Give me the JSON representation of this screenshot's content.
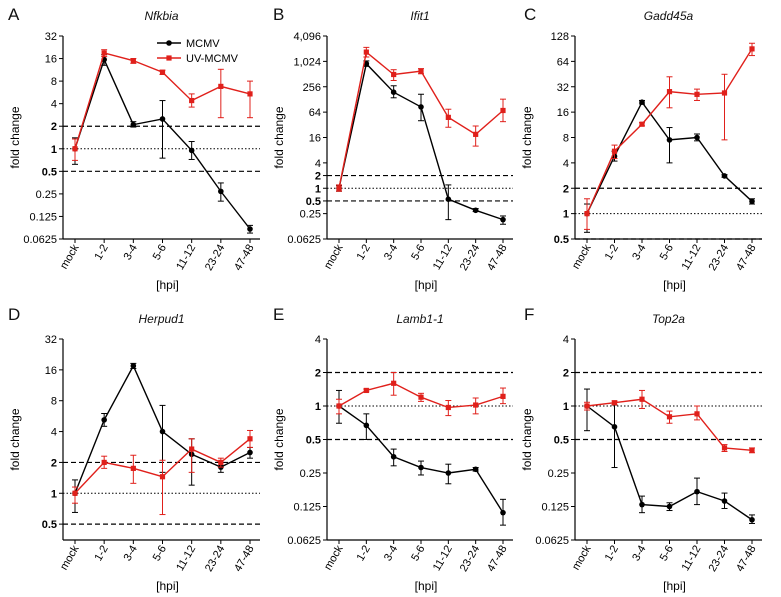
{
  "figure": {
    "x_unit_label": "[hpi]",
    "y_axis_label": "fold change"
  },
  "legend": {
    "mcmv": "MCMV",
    "uv_mcmv": "UV-MCMV"
  },
  "colors": {
    "mcmv": "#000000",
    "uv_mcmv": "#e0201b"
  },
  "chart_data": [
    {
      "panel": "A",
      "gene": "Nfkbia",
      "type": "line",
      "log_base": 2,
      "categories": [
        "mock",
        "1-2",
        "3-4",
        "5-6",
        "11-12",
        "23-24",
        "47-48"
      ],
      "yticks": [
        "0.0625",
        "0.125",
        "0.25",
        "0.5",
        "1",
        "2",
        "4",
        "8",
        "16",
        "32"
      ],
      "ylim": [
        0.0625,
        32
      ],
      "reference_lines": {
        "dashed": [
          0.5,
          2
        ],
        "dotted": [
          1
        ]
      },
      "series": [
        {
          "name": "MCMV",
          "values": [
            1,
            15.5,
            2.1,
            2.5,
            0.95,
            0.27,
            0.085
          ],
          "err_low": [
            0.62,
            13,
            1.95,
            0.75,
            0.72,
            0.2,
            0.075
          ],
          "err_high": [
            1.4,
            18,
            2.3,
            4.4,
            1.25,
            0.35,
            0.095
          ]
        },
        {
          "name": "UV-MCMV",
          "values": [
            1,
            19,
            15,
            10.5,
            4.4,
            6.8,
            5.4
          ],
          "err_low": [
            0.7,
            17,
            13.8,
            9.8,
            3.6,
            2.6,
            2.6
          ],
          "err_high": [
            1.35,
            21,
            16,
            11.2,
            5.4,
            11.5,
            8
          ]
        }
      ]
    },
    {
      "panel": "B",
      "gene": "Ifit1",
      "type": "line",
      "log_base": 2,
      "categories": [
        "mock",
        "1-2",
        "3-4",
        "5-6",
        "11-12",
        "23-24",
        "47-48"
      ],
      "yticks": [
        "0.0625",
        "0.25",
        "0.5",
        "1",
        "2",
        "4",
        "16",
        "64",
        "256",
        "1,024",
        "4,096"
      ],
      "ylim": [
        0.0625,
        4096
      ],
      "reference_lines": {
        "dashed": [
          0.5,
          2
        ],
        "dotted": [
          1
        ]
      },
      "series": [
        {
          "name": "MCMV",
          "values": [
            1,
            900,
            190,
            85,
            0.55,
            0.3,
            0.18
          ],
          "err_low": [
            0.85,
            780,
            140,
            40,
            0.18,
            0.28,
            0.14
          ],
          "err_high": [
            1.15,
            1050,
            270,
            170,
            1.2,
            0.33,
            0.22
          ]
        },
        {
          "name": "UV-MCMV",
          "values": [
            1,
            1700,
            500,
            600,
            48,
            19,
            70
          ],
          "err_low": [
            0.85,
            1300,
            360,
            520,
            28,
            10,
            38
          ],
          "err_high": [
            1.2,
            2200,
            650,
            690,
            75,
            30,
            130
          ]
        }
      ]
    },
    {
      "panel": "C",
      "gene": "Gadd45a",
      "type": "line",
      "log_base": 2,
      "categories": [
        "mock",
        "1-2",
        "3-4",
        "5-6",
        "11-12",
        "23-24",
        "47-48"
      ],
      "yticks": [
        "0.5",
        "1",
        "2",
        "4",
        "8",
        "16",
        "32",
        "64",
        "128"
      ],
      "ylim": [
        0.5,
        128
      ],
      "reference_lines": {
        "dashed": [
          0.5,
          2
        ],
        "dotted": [
          1
        ]
      },
      "series": [
        {
          "name": "MCMV",
          "values": [
            1,
            4.8,
            21,
            7.5,
            8,
            2.8,
            1.4
          ],
          "err_low": [
            0.6,
            4.2,
            20,
            4,
            7.3,
            2.7,
            1.3
          ],
          "err_high": [
            1.3,
            5.5,
            22,
            10.5,
            8.8,
            2.9,
            1.5
          ]
        },
        {
          "name": "UV-MCMV",
          "values": [
            1,
            5.5,
            11.5,
            28,
            26,
            27,
            90
          ],
          "err_low": [
            0.65,
            4.5,
            11,
            18,
            22,
            7.5,
            75
          ],
          "err_high": [
            1.5,
            6.5,
            12,
            42,
            30,
            45,
            105
          ]
        }
      ]
    },
    {
      "panel": "D",
      "gene": "Herpud1",
      "type": "line",
      "log_base": 2,
      "categories": [
        "mock",
        "1-2",
        "3-4",
        "5-6",
        "11-12",
        "23-24",
        "47-48"
      ],
      "yticks": [
        "0.5",
        "1",
        "2",
        "4",
        "8",
        "16",
        "32"
      ],
      "ylim": [
        0.35,
        32
      ],
      "reference_lines": {
        "dashed": [
          0.5,
          2
        ],
        "dotted": [
          1
        ]
      },
      "series": [
        {
          "name": "MCMV",
          "values": [
            1,
            5.2,
            17.5,
            4,
            2.4,
            1.8,
            2.5
          ],
          "err_low": [
            0.65,
            4.5,
            16.5,
            1.6,
            1.2,
            1.6,
            2.2
          ],
          "err_high": [
            1.35,
            6,
            18.5,
            7.2,
            3.4,
            2,
            2.8
          ]
        },
        {
          "name": "UV-MCMV",
          "values": [
            1,
            2,
            1.75,
            1.45,
            2.7,
            2,
            3.4
          ],
          "err_low": [
            0.8,
            1.75,
            1.25,
            0.62,
            1.6,
            1.8,
            2.8
          ],
          "err_high": [
            1.15,
            2.3,
            2.35,
            2.1,
            3.4,
            2.2,
            4.1
          ]
        }
      ]
    },
    {
      "panel": "E",
      "gene": "Lamb1-1",
      "type": "line",
      "log_base": 2,
      "categories": [
        "mock",
        "1-2",
        "3-4",
        "5-6",
        "11-12",
        "23-24",
        "47-48"
      ],
      "yticks": [
        "0.0625",
        "0.125",
        "0.25",
        "0.5",
        "1",
        "2",
        "4"
      ],
      "ylim": [
        0.0625,
        4
      ],
      "reference_lines": {
        "dashed": [
          0.5,
          2
        ],
        "dotted": [
          1
        ]
      },
      "series": [
        {
          "name": "MCMV",
          "values": [
            1,
            0.67,
            0.35,
            0.28,
            0.25,
            0.27,
            0.11
          ],
          "err_low": [
            0.7,
            0.5,
            0.29,
            0.24,
            0.2,
            0.26,
            0.085
          ],
          "err_high": [
            1.38,
            0.85,
            0.41,
            0.32,
            0.3,
            0.28,
            0.145
          ]
        },
        {
          "name": "UV-MCMV",
          "values": [
            1,
            1.38,
            1.6,
            1.2,
            0.97,
            1.02,
            1.22
          ],
          "err_low": [
            0.85,
            1.34,
            1.25,
            1.1,
            0.82,
            0.85,
            1.05
          ],
          "err_high": [
            1.15,
            1.42,
            2.0,
            1.3,
            1.12,
            1.18,
            1.45
          ]
        }
      ]
    },
    {
      "panel": "F",
      "gene": "Top2a",
      "type": "line",
      "log_base": 2,
      "categories": [
        "mock",
        "1-2",
        "3-4",
        "5-6",
        "11-12",
        "23-24",
        "47-48"
      ],
      "yticks": [
        "0.0625",
        "0.125",
        "0.25",
        "0.5",
        "1",
        "2",
        "4"
      ],
      "ylim": [
        0.0625,
        4
      ],
      "reference_lines": {
        "dashed": [
          0.5,
          2
        ],
        "dotted": [
          1
        ]
      },
      "series": [
        {
          "name": "MCMV",
          "values": [
            1,
            0.65,
            0.13,
            0.125,
            0.17,
            0.14,
            0.095
          ],
          "err_low": [
            0.6,
            0.28,
            0.11,
            0.115,
            0.13,
            0.12,
            0.088
          ],
          "err_high": [
            1.42,
            1.02,
            0.155,
            0.135,
            0.225,
            0.165,
            0.105
          ]
        },
        {
          "name": "UV-MCMV",
          "values": [
            1,
            1.07,
            1.15,
            0.8,
            0.85,
            0.42,
            0.4
          ],
          "err_low": [
            0.92,
            1.03,
            0.95,
            0.7,
            0.75,
            0.39,
            0.38
          ],
          "err_high": [
            1.08,
            1.11,
            1.38,
            0.9,
            1.0,
            0.45,
            0.42
          ]
        }
      ]
    }
  ]
}
